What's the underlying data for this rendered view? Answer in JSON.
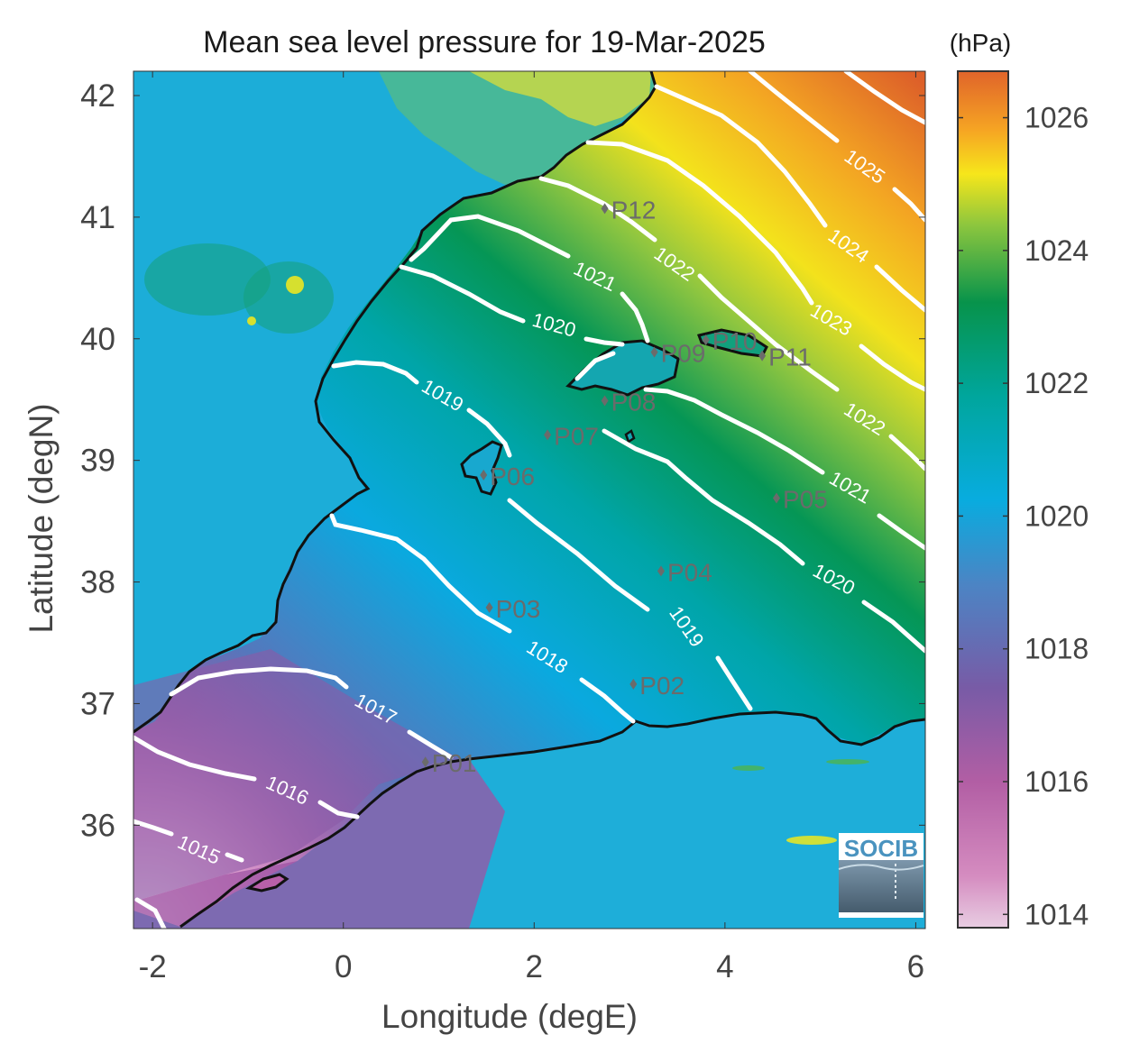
{
  "title": "Mean sea level pressure for 19-Mar-2025",
  "colorbar": {
    "unit_label": "(hPa)",
    "ticks": [
      "1014",
      "1016",
      "1018",
      "1020",
      "1022",
      "1024",
      "1026"
    ],
    "range": [
      1013.8,
      1026.7
    ]
  },
  "axes": {
    "xlabel": "Longitude (degE)",
    "ylabel": "Latitude (degN)",
    "xticks": [
      "-2",
      "0",
      "2",
      "4",
      "6"
    ],
    "yticks": [
      "36",
      "37",
      "38",
      "39",
      "40",
      "41",
      "42"
    ],
    "xlim": [
      -2.2,
      6.1
    ],
    "ylim": [
      35.15,
      42.2
    ]
  },
  "contour_labels": [
    "1015",
    "1016",
    "1017",
    "1018",
    "1019",
    "1019",
    "1020",
    "1020",
    "1021",
    "1021",
    "1022",
    "1022",
    "1023",
    "1024",
    "1025"
  ],
  "stations": [
    {
      "label": "P01",
      "lon": 0.86,
      "lat": 36.52
    },
    {
      "label": "P02",
      "lon": 3.04,
      "lat": 37.16
    },
    {
      "label": "P03",
      "lon": 1.53,
      "lat": 37.79
    },
    {
      "label": "P04",
      "lon": 3.33,
      "lat": 38.09
    },
    {
      "label": "P05",
      "lon": 4.54,
      "lat": 38.69
    },
    {
      "label": "P06",
      "lon": 1.47,
      "lat": 38.88
    },
    {
      "label": "P07",
      "lon": 2.14,
      "lat": 39.21
    },
    {
      "label": "P08",
      "lon": 2.74,
      "lat": 39.49
    },
    {
      "label": "P09",
      "lon": 3.26,
      "lat": 39.89
    },
    {
      "label": "P10",
      "lon": 3.8,
      "lat": 39.99
    },
    {
      "label": "P11",
      "lon": 4.39,
      "lat": 39.86
    },
    {
      "label": "P12",
      "lon": 2.74,
      "lat": 41.07
    }
  ],
  "logo": {
    "text": "SOCIB"
  },
  "colors": {
    "contour": "#ffffff",
    "coast": "#111111",
    "station": "#6b6b6b"
  }
}
